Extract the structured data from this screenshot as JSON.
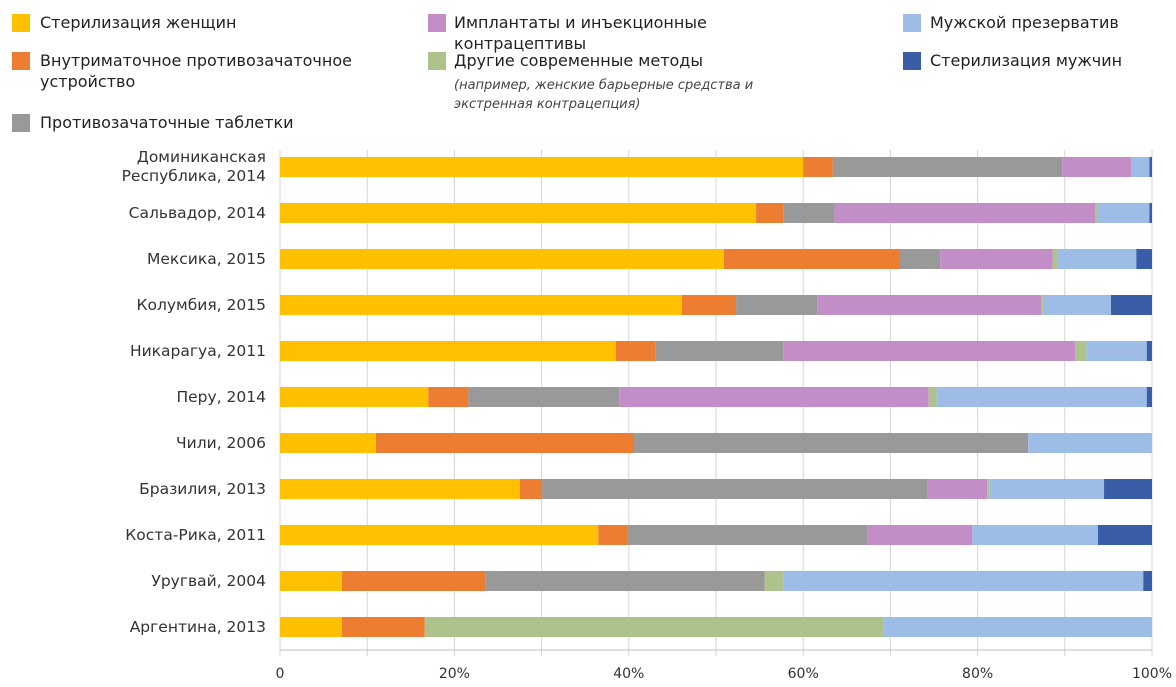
{
  "chart_data": {
    "type": "stacked_barh",
    "categories": [
      "Доминиканская Республика, 2014",
      "Сальвадор, 2014",
      "Мексика, 2015",
      "Колумбия, 2015",
      "Никарагуа, 2011",
      "Перу, 2014",
      "Чили, 2006",
      "Бразилия, 2013",
      "Коста-Рика, 2011",
      "Уругвай, 2004",
      "Аргентина, 2013"
    ],
    "series": [
      {
        "name": "Стерилизация женщин",
        "color": "#FFC000",
        "values": [
          60.0,
          54.6,
          50.9,
          46.1,
          38.5,
          17.0,
          11.0,
          27.5,
          36.5,
          7.1,
          7.1
        ]
      },
      {
        "name": "Внутриматочное противозачаточное устройство",
        "color": "#ED7D31",
        "values": [
          3.4,
          3.1,
          20.2,
          6.2,
          4.6,
          4.6,
          29.6,
          2.5,
          3.4,
          16.5,
          9.5
        ]
      },
      {
        "name": "Противозачаточные таблетки",
        "color": "#999999",
        "values": [
          26.3,
          5.9,
          4.6,
          9.3,
          14.6,
          17.3,
          45.2,
          44.2,
          27.5,
          32.0,
          0
        ]
      },
      {
        "name": "Имплантаты и инъекционные контрацептивы",
        "color": "#C38EC7",
        "values": [
          7.9,
          29.9,
          12.9,
          25.7,
          33.5,
          35.5,
          0,
          6.9,
          12.0,
          0,
          0
        ]
      },
      {
        "name": "Другие современные методы",
        "color": "#ADC38B",
        "values": [
          0,
          0.3,
          0.5,
          0.3,
          1.3,
          0.9,
          0,
          0.3,
          0,
          2.1,
          52.6
        ]
      },
      {
        "name": "Мужской презерватив",
        "color": "#9DBDE6",
        "values": [
          2.1,
          5.9,
          9.1,
          7.7,
          6.9,
          24.1,
          14.2,
          13.1,
          14.4,
          41.3,
          30.8
        ]
      },
      {
        "name": "Стерилизация мужчин",
        "color": "#3A5DA8",
        "values": [
          0.3,
          0.3,
          1.8,
          4.7,
          0.6,
          0.6,
          0,
          5.5,
          6.2,
          1.0,
          0
        ]
      }
    ],
    "legend_note": "(например, женские барьерные средства и экстренная контрацепция)",
    "xlim": [
      0,
      100
    ],
    "xticks": [
      0,
      {
        "value": 20,
        "label": "20%"
      },
      {
        "value": 40,
        "label": "40%"
      },
      {
        "value": 60,
        "label": "60%"
      },
      {
        "value": 80,
        "label": "80%"
      },
      {
        "value": 100,
        "label": "100%"
      }
    ],
    "minor_xticks": [
      10,
      30,
      50,
      70,
      90
    ],
    "grid": true
  }
}
